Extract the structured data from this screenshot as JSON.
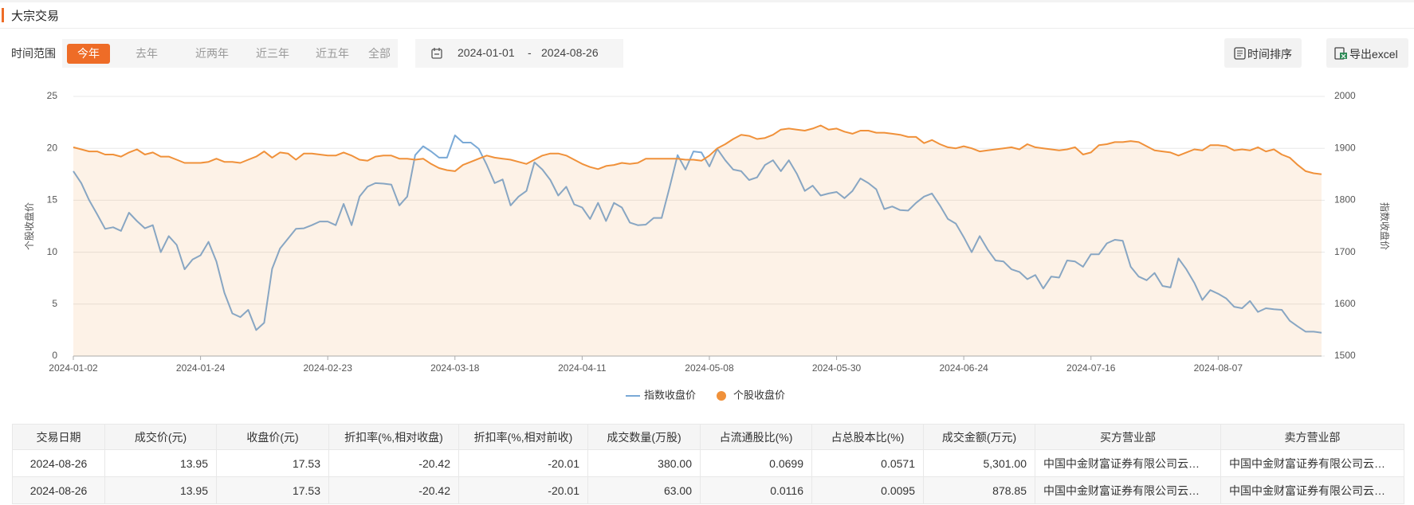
{
  "header": {
    "title": "大宗交易"
  },
  "filters": {
    "label": "时间范围",
    "options": [
      "今年",
      "去年",
      "近两年",
      "近三年",
      "近五年",
      "全部"
    ],
    "active": 0,
    "date_start": "2024-01-01",
    "date_separator": "-",
    "date_end": "2024-08-26"
  },
  "actions": [
    "时间排序",
    "导出excel"
  ],
  "chart_data": {
    "type": "line",
    "categories": [
      "2024-01-02",
      null,
      null,
      null,
      null,
      null,
      null,
      null,
      null,
      null,
      null,
      null,
      null,
      null,
      null,
      null,
      "2024-01-24",
      null,
      null,
      null,
      null,
      null,
      null,
      null,
      null,
      null,
      null,
      null,
      null,
      null,
      null,
      null,
      "2024-02-23",
      null,
      null,
      null,
      null,
      null,
      null,
      null,
      null,
      null,
      null,
      null,
      null,
      null,
      null,
      null,
      "2024-03-18",
      null,
      null,
      null,
      null,
      null,
      null,
      null,
      null,
      null,
      null,
      null,
      null,
      null,
      null,
      null,
      "2024-04-11",
      null,
      null,
      null,
      null,
      null,
      null,
      null,
      null,
      null,
      null,
      null,
      null,
      null,
      null,
      null,
      "2024-05-08",
      null,
      null,
      null,
      null,
      null,
      null,
      null,
      null,
      null,
      null,
      null,
      null,
      null,
      null,
      null,
      "2024-05-30",
      null,
      null,
      null,
      null,
      null,
      null,
      null,
      null,
      null,
      null,
      null,
      null,
      null,
      null,
      null,
      "2024-06-24",
      null,
      null,
      null,
      null,
      null,
      null,
      null,
      null,
      null,
      null,
      null,
      null,
      null,
      null,
      null,
      "2024-07-16",
      null,
      null,
      null,
      null,
      null,
      null,
      null,
      null,
      null,
      null,
      null,
      null,
      null,
      null,
      null,
      "2024-08-07",
      null,
      null,
      null,
      null,
      null,
      null,
      null,
      null,
      null,
      null,
      null,
      null,
      null
    ],
    "series": [
      {
        "name": "指数收盘价",
        "color": "#7aa9d6",
        "axis": "y2",
        "values": [
          1856,
          1833,
          1800,
          1773,
          1745,
          1748,
          1741,
          1776,
          1760,
          1746,
          1752,
          1700,
          1731,
          1714,
          1667,
          1686,
          1694,
          1720,
          1682,
          1622,
          1582,
          1575,
          1589,
          1550,
          1564,
          1668,
          1707,
          1726,
          1745,
          1746,
          1752,
          1759,
          1759,
          1752,
          1793,
          1752,
          1807,
          1826,
          1833,
          1832,
          1830,
          1790,
          1807,
          1887,
          1904,
          1894,
          1882,
          1882,
          1925,
          1911,
          1911,
          1899,
          1868,
          1833,
          1840,
          1790,
          1807,
          1818,
          1873,
          1859,
          1839,
          1809,
          1826,
          1792,
          1786,
          1764,
          1795,
          1760,
          1795,
          1786,
          1757,
          1752,
          1753,
          1766,
          1766,
          1825,
          1887,
          1859,
          1894,
          1892,
          1865,
          1899,
          1877,
          1859,
          1856,
          1839,
          1844,
          1868,
          1877,
          1856,
          1877,
          1851,
          1818,
          1828,
          1809,
          1813,
          1816,
          1804,
          1818,
          1842,
          1833,
          1821,
          1783,
          1788,
          1781,
          1780,
          1795,
          1807,
          1813,
          1790,
          1764,
          1755,
          1729,
          1700,
          1731,
          1705,
          1684,
          1682,
          1667,
          1662,
          1648,
          1656,
          1630,
          1653,
          1651,
          1684,
          1682,
          1672,
          1696,
          1696,
          1717,
          1724,
          1722,
          1672,
          1653,
          1646,
          1660,
          1635,
          1632,
          1688,
          1667,
          1641,
          1608,
          1627,
          1620,
          1611,
          1595,
          1592,
          1606,
          1585,
          1592,
          1590,
          1589,
          1568,
          1557,
          1547,
          1547,
          1545
        ]
      },
      {
        "name": "个股收盘价",
        "color": "#f0913a",
        "area": true,
        "values": [
          20.1,
          19.9,
          19.7,
          19.7,
          19.4,
          19.4,
          19.2,
          19.6,
          19.9,
          19.4,
          19.6,
          19.2,
          19.2,
          18.9,
          18.6,
          18.6,
          18.6,
          18.7,
          19.0,
          18.7,
          18.7,
          18.6,
          18.9,
          19.2,
          19.7,
          19.1,
          19.6,
          19.5,
          18.9,
          19.5,
          19.5,
          19.4,
          19.3,
          19.3,
          19.6,
          19.3,
          18.9,
          18.8,
          19.2,
          19.3,
          19.3,
          19.0,
          19.0,
          18.9,
          19.0,
          18.5,
          18.1,
          17.9,
          17.8,
          18.4,
          18.7,
          19.0,
          19.3,
          19.1,
          19.0,
          18.9,
          18.7,
          18.5,
          18.9,
          19.3,
          19.5,
          19.5,
          19.3,
          18.9,
          18.5,
          18.2,
          18.0,
          18.3,
          18.4,
          18.6,
          18.5,
          18.6,
          19.0,
          19.0,
          19.0,
          19.0,
          19.0,
          18.9,
          18.9,
          18.8,
          19.3,
          20.0,
          20.4,
          20.9,
          21.3,
          21.2,
          20.9,
          21.0,
          21.3,
          21.8,
          21.9,
          21.8,
          21.7,
          21.9,
          22.2,
          21.8,
          21.9,
          21.6,
          21.4,
          21.7,
          21.7,
          21.5,
          21.5,
          21.4,
          21.3,
          21.1,
          21.1,
          20.5,
          20.8,
          20.4,
          20.1,
          20.0,
          20.2,
          20.0,
          19.7,
          19.8,
          19.9,
          20.0,
          20.1,
          19.9,
          20.4,
          20.1,
          20.0,
          19.9,
          19.8,
          19.9,
          20.1,
          19.4,
          19.6,
          20.3,
          20.4,
          20.6,
          20.6,
          20.7,
          20.6,
          20.2,
          19.8,
          19.7,
          19.6,
          19.3,
          19.6,
          19.9,
          19.8,
          20.3,
          20.3,
          20.2,
          19.8,
          19.9,
          19.8,
          20.1,
          19.7,
          19.9,
          19.4,
          19.1,
          18.4,
          17.8,
          17.6,
          17.5
        ]
      }
    ],
    "ylabel": "个股收盘价",
    "y2label": "指数收盘价",
    "ylim": [
      0,
      25
    ],
    "yticks": [
      0,
      5,
      10,
      15,
      20,
      25
    ],
    "y2lim": [
      1500,
      2000
    ],
    "y2ticks": [
      1500,
      1600,
      1700,
      1800,
      1900,
      2000
    ],
    "grid": true,
    "legend": "bottom"
  },
  "table": {
    "columns": [
      "交易日期",
      "成交价(元)",
      "收盘价(元)",
      "折扣率(%,相对收盘)",
      "折扣率(%,相对前收)",
      "成交数量(万股)",
      "占流通股比(%)",
      "占总股本比(%)",
      "成交金额(万元)",
      "买方营业部",
      "卖方营业部"
    ],
    "rows": [
      [
        "2024-08-26",
        "13.95",
        "17.53",
        "-20.42",
        "-20.01",
        "380.00",
        "0.0699",
        "0.0571",
        "5,301.00",
        "中国中金财富证券有限公司云…",
        "中国中金财富证券有限公司云…"
      ],
      [
        "2024-08-26",
        "13.95",
        "17.53",
        "-20.42",
        "-20.01",
        "63.00",
        "0.0116",
        "0.0095",
        "878.85",
        "中国中金财富证券有限公司云…",
        "中国中金财富证券有限公司云…"
      ]
    ]
  }
}
